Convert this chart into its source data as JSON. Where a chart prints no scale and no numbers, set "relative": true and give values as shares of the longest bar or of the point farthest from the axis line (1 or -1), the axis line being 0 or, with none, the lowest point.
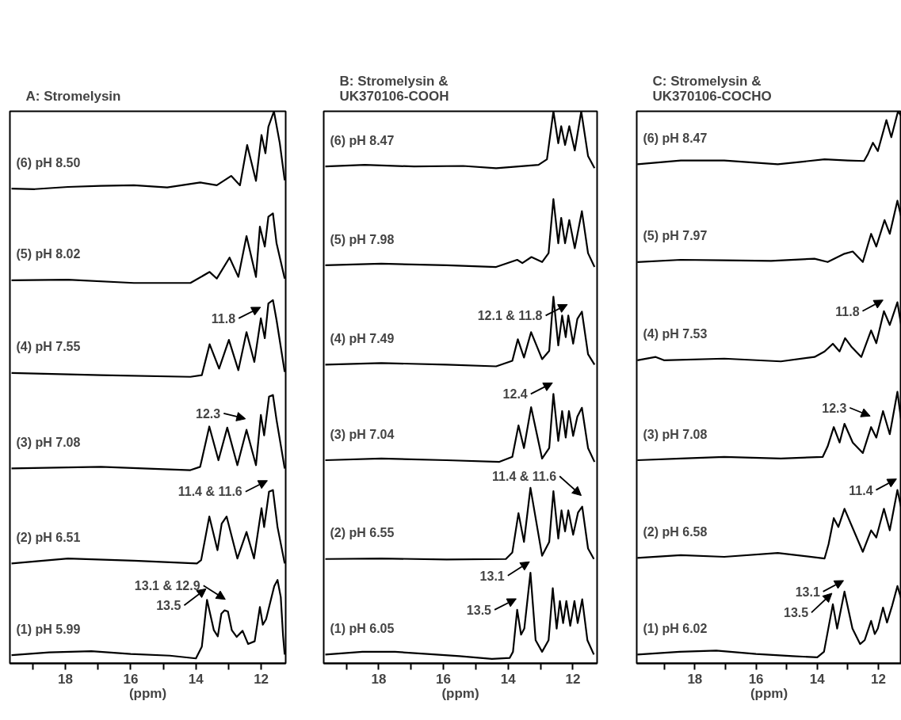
{
  "chart_data": [
    {
      "type": "line",
      "title": "A: Stromelysin",
      "xlabel": "(ppm)",
      "xlim": [
        19.7,
        11.25
      ],
      "xticks": [
        {
          "value": 19,
          "label": null
        },
        18,
        {
          "value": 17,
          "label": null
        },
        16,
        {
          "value": 15,
          "label": null
        },
        14,
        {
          "value": 13,
          "label": null
        },
        12
      ],
      "relative": true,
      "grid": false,
      "legend": false,
      "series": [
        {
          "name": "(6) pH 8.50",
          "color": "#000000",
          "x": [
            19.65,
            18.94,
            17.92,
            16.91,
            15.9,
            14.88,
            13.87,
            13.36,
            12.92,
            12.65,
            12.43,
            12.16,
            11.99,
            11.87,
            11.78,
            11.61,
            11.43,
            11.28
          ],
          "values": [
            0.86,
            0.859,
            0.863,
            0.865,
            0.866,
            0.862,
            0.871,
            0.866,
            0.883,
            0.866,
            0.939,
            0.874,
            0.957,
            0.924,
            0.972,
            1,
            0.942,
            0.875
          ]
        },
        {
          "name": "(5) pH 8.02",
          "color": "#000000",
          "x": [
            19.65,
            17.92,
            15.9,
            14.17,
            13.58,
            13.36,
            12.97,
            12.7,
            12.45,
            12.16,
            12.04,
            11.89,
            11.78,
            11.64,
            11.53,
            11.28
          ],
          "values": [
            0.694,
            0.695,
            0.689,
            0.689,
            0.709,
            0.697,
            0.735,
            0.7,
            0.774,
            0.7,
            0.791,
            0.755,
            0.809,
            0.815,
            0.761,
            0.697
          ]
        },
        {
          "name": "(4) pH 7.55",
          "color": "#000000",
          "x": [
            19.65,
            16.91,
            14.17,
            13.82,
            13.58,
            13.29,
            12.99,
            12.7,
            12.45,
            12.21,
            12.01,
            11.89,
            11.78,
            11.64,
            11.53,
            11.28
          ],
          "values": [
            0.526,
            0.522,
            0.519,
            0.522,
            0.578,
            0.534,
            0.586,
            0.531,
            0.6,
            0.546,
            0.625,
            0.589,
            0.652,
            0.658,
            0.622,
            0.528
          ]
        },
        {
          "name": "(3) pH 7.08",
          "color": "#000000",
          "x": [
            19.65,
            16.91,
            14.17,
            13.87,
            13.59,
            13.31,
            13.04,
            12.73,
            12.45,
            12.16,
            12.01,
            11.91,
            11.76,
            11.64,
            11.53,
            11.28
          ],
          "values": [
            0.353,
            0.356,
            0.35,
            0.356,
            0.429,
            0.368,
            0.427,
            0.359,
            0.423,
            0.359,
            0.45,
            0.413,
            0.483,
            0.486,
            0.441,
            0.353
          ]
        },
        {
          "name": "(2) pH 6.51",
          "color": "#000000",
          "x": [
            19.65,
            17.92,
            15.9,
            13.97,
            13.84,
            13.59,
            13.34,
            13.21,
            13.06,
            12.73,
            12.45,
            12.22,
            11.99,
            11.91,
            11.76,
            11.64,
            11.5,
            11.28
          ],
          "values": [
            0.181,
            0.19,
            0.186,
            0.181,
            0.187,
            0.266,
            0.205,
            0.253,
            0.266,
            0.19,
            0.238,
            0.19,
            0.281,
            0.247,
            0.311,
            0.314,
            0.247,
            0.181
          ]
        },
        {
          "name": "(1) pH 5.99",
          "color": "#000000",
          "x": [
            19.65,
            18.5,
            17.2,
            16.0,
            14.8,
            14.0,
            13.82,
            13.66,
            13.45,
            13.33,
            13.22,
            13.12,
            13.02,
            12.9,
            12.75,
            12.57,
            12.4,
            12.2,
            12.04,
            11.95,
            11.85,
            11.6,
            11.5,
            11.4,
            11.33,
            11.28
          ],
          "values": [
            0.015,
            0.02,
            0.022,
            0.017,
            0.014,
            0.009,
            0.03,
            0.115,
            0.06,
            0.049,
            0.09,
            0.096,
            0.094,
            0.06,
            0.048,
            0.059,
            0.035,
            0.04,
            0.102,
            0.07,
            0.08,
            0.14,
            0.151,
            0.12,
            0.05,
            0.016
          ]
        }
      ],
      "annotations": [
        {
          "text": "11.8",
          "x": 11.99,
          "y": 0.625
        },
        {
          "text": "12.3",
          "x": 12.45,
          "y": 0.423
        },
        {
          "text": "11.4 & 11.6",
          "x": 11.78,
          "y": 0.311
        },
        {
          "text": "13.1 & 12.9",
          "x": 13.07,
          "y": 0.096
        },
        {
          "text": "13.5",
          "x": 13.66,
          "y": 0.115
        }
      ]
    },
    {
      "type": "line",
      "title": "B: Stromelysin &\nUK370106-COOH",
      "xlabel": "(ppm)",
      "xlim": [
        19.7,
        11.25
      ],
      "xticks": [
        {
          "value": 19,
          "label": null
        },
        18,
        {
          "value": 17,
          "label": null
        },
        16,
        {
          "value": 15,
          "label": null
        },
        14,
        {
          "value": 13,
          "label": null
        },
        12
      ],
      "relative": true,
      "grid": false,
      "legend": false,
      "series": [
        {
          "name": "(6) pH 8.47",
          "color": "#000000",
          "x": [
            19.65,
            18.43,
            16.91,
            15.39,
            14.37,
            13.06,
            12.8,
            12.6,
            12.45,
            12.36,
            12.24,
            12.11,
            11.94,
            11.74,
            11.53,
            11.33
          ],
          "values": [
            0.9,
            0.903,
            0.9,
            0.901,
            0.897,
            0.903,
            0.913,
            1,
            0.942,
            0.973,
            0.939,
            0.973,
            0.929,
            1,
            0.919,
            0.897
          ]
        },
        {
          "name": "(5) pH 7.98",
          "color": "#000000",
          "x": [
            19.65,
            17.92,
            15.9,
            14.37,
            13.72,
            13.56,
            13.28,
            12.95,
            12.75,
            12.6,
            12.45,
            12.36,
            12.24,
            12.11,
            11.94,
            11.72,
            11.53,
            11.33
          ],
          "values": [
            0.721,
            0.724,
            0.721,
            0.718,
            0.731,
            0.725,
            0.736,
            0.727,
            0.743,
            0.841,
            0.761,
            0.807,
            0.761,
            0.803,
            0.752,
            0.819,
            0.743,
            0.718
          ]
        },
        {
          "name": "(4) pH 7.49",
          "color": "#000000",
          "x": [
            19.65,
            17.92,
            15.9,
            14.37,
            13.87,
            13.7,
            13.51,
            13.29,
            12.95,
            12.73,
            12.6,
            12.45,
            12.33,
            12.22,
            12.14,
            11.99,
            11.86,
            11.72,
            11.53,
            11.33
          ],
          "values": [
            0.541,
            0.544,
            0.541,
            0.538,
            0.548,
            0.587,
            0.554,
            0.6,
            0.551,
            0.566,
            0.664,
            0.576,
            0.63,
            0.591,
            0.63,
            0.579,
            0.624,
            0.637,
            0.56,
            0.541
          ]
        },
        {
          "name": "(3) pH 7.04",
          "color": "#000000",
          "x": [
            19.65,
            17.92,
            15.9,
            14.27,
            13.87,
            13.68,
            13.51,
            13.29,
            12.95,
            12.73,
            12.6,
            12.45,
            12.33,
            12.22,
            12.12,
            11.99,
            11.86,
            11.72,
            11.53,
            11.33
          ],
          "values": [
            0.368,
            0.371,
            0.368,
            0.365,
            0.374,
            0.431,
            0.39,
            0.464,
            0.371,
            0.39,
            0.488,
            0.403,
            0.457,
            0.409,
            0.457,
            0.412,
            0.447,
            0.463,
            0.39,
            0.365
          ]
        },
        {
          "name": "(2) pH 6.55",
          "color": "#000000",
          "x": [
            19.65,
            17.92,
            15.9,
            14.07,
            13.87,
            13.68,
            13.51,
            13.31,
            12.95,
            12.73,
            12.6,
            12.45,
            12.35,
            12.24,
            12.14,
            11.99,
            11.84,
            11.71,
            11.53,
            11.35
          ],
          "values": [
            0.189,
            0.19,
            0.188,
            0.189,
            0.201,
            0.272,
            0.22,
            0.318,
            0.195,
            0.22,
            0.312,
            0.226,
            0.277,
            0.239,
            0.277,
            0.233,
            0.273,
            0.284,
            0.208,
            0.189
          ]
        },
        {
          "name": "(1) pH 6.05",
          "color": "#000000",
          "x": [
            19.65,
            18.5,
            17.5,
            16.5,
            15.5,
            14.5,
            13.95,
            13.85,
            13.72,
            13.6,
            13.5,
            13.31,
            13.15,
            12.95,
            12.75,
            12.62,
            12.5,
            12.4,
            12.3,
            12.2,
            12.08,
            11.95,
            11.85,
            11.71,
            11.55,
            11.35
          ],
          "values": [
            0.016,
            0.021,
            0.021,
            0.017,
            0.013,
            0.008,
            0.01,
            0.021,
            0.097,
            0.052,
            0.063,
            0.164,
            0.042,
            0.021,
            0.042,
            0.136,
            0.063,
            0.113,
            0.073,
            0.113,
            0.068,
            0.113,
            0.073,
            0.116,
            0.042,
            0.016
          ]
        }
      ],
      "annotations": [
        {
          "text": "12.1 & 11.8",
          "x": 12.14,
          "y": 0.63
        },
        {
          "text": "12.4",
          "x": 12.6,
          "y": 0.488
        },
        {
          "text": "11.4 & 11.6",
          "x": 11.71,
          "y": 0.284
        },
        {
          "text": "13.1",
          "x": 13.31,
          "y": 0.164
        },
        {
          "text": "13.5",
          "x": 13.72,
          "y": 0.097
        }
      ]
    },
    {
      "type": "line",
      "title": "C: Stromelysin &\nUK370106-COCHO",
      "xlabel": "(ppm)",
      "xlim": [
        19.9,
        11.25
      ],
      "xticks": [
        {
          "value": 19,
          "label": null
        },
        18,
        {
          "value": 17,
          "label": null
        },
        16,
        {
          "value": 15,
          "label": null
        },
        14,
        {
          "value": 13,
          "label": null
        },
        12
      ],
      "relative": true,
      "grid": false,
      "legend": false,
      "series": [
        {
          "name": "(6) pH 8.47",
          "color": "#000000",
          "x": [
            19.88,
            18.46,
            17.04,
            15.29,
            13.76,
            13.0,
            12.47,
            12.34,
            12.18,
            12.02,
            11.74,
            11.58,
            11.36,
            11.25
          ],
          "values": [
            0.904,
            0.911,
            0.911,
            0.904,
            0.913,
            0.911,
            0.91,
            0.923,
            0.943,
            0.928,
            0.984,
            0.953,
            1,
            0.991
          ]
        },
        {
          "name": "(5) pH 7.97",
          "color": "#000000",
          "x": [
            19.88,
            18.46,
            17.04,
            15.51,
            14.09,
            13.66,
            13.11,
            12.84,
            12.51,
            12.24,
            12.07,
            11.8,
            11.63,
            11.38,
            11.25
          ],
          "values": [
            0.727,
            0.731,
            0.73,
            0.729,
            0.733,
            0.727,
            0.742,
            0.746,
            0.727,
            0.778,
            0.755,
            0.803,
            0.778,
            0.838,
            0.807
          ]
        },
        {
          "name": "(4) pH 7.53",
          "color": "#000000",
          "x": [
            19.88,
            19.28,
            19.01,
            17.04,
            15.19,
            14.09,
            13.76,
            13.49,
            13.27,
            13.09,
            12.89,
            12.56,
            12.24,
            12.07,
            11.82,
            11.63,
            11.38,
            11.25
          ],
          "values": [
            0.549,
            0.555,
            0.549,
            0.552,
            0.547,
            0.555,
            0.565,
            0.579,
            0.565,
            0.589,
            0.574,
            0.555,
            0.603,
            0.58,
            0.638,
            0.613,
            0.654,
            0.61
          ]
        },
        {
          "name": "(3) pH 7.08",
          "color": "#000000",
          "x": [
            19.88,
            18.46,
            17.04,
            15.19,
            13.82,
            13.66,
            13.46,
            13.27,
            13.11,
            12.84,
            12.51,
            12.24,
            12.07,
            11.85,
            11.63,
            11.38,
            11.25
          ],
          "values": [
            0.368,
            0.371,
            0.374,
            0.371,
            0.374,
            0.393,
            0.428,
            0.4,
            0.434,
            0.4,
            0.381,
            0.428,
            0.409,
            0.457,
            0.415,
            0.492,
            0.437
          ]
        },
        {
          "name": "(2) pH 6.58",
          "color": "#000000",
          "x": [
            19.88,
            18.46,
            17.04,
            15.29,
            13.76,
            13.63,
            13.46,
            13.31,
            13.11,
            12.51,
            12.24,
            12.07,
            11.82,
            11.63,
            11.38,
            11.25
          ],
          "values": [
            0.191,
            0.196,
            0.193,
            0.2,
            0.19,
            0.216,
            0.263,
            0.247,
            0.28,
            0.202,
            0.241,
            0.228,
            0.28,
            0.241,
            0.314,
            0.28
          ]
        },
        {
          "name": "(1) pH 6.02",
          "color": "#000000",
          "x": [
            19.88,
            18.5,
            17.3,
            16.0,
            14.8,
            14.0,
            13.78,
            13.49,
            13.35,
            13.11,
            12.85,
            12.6,
            12.45,
            12.24,
            12.12,
            12.02,
            11.85,
            11.72,
            11.55,
            11.38,
            11.25
          ],
          "values": [
            0.016,
            0.021,
            0.023,
            0.017,
            0.013,
            0.011,
            0.021,
            0.107,
            0.063,
            0.13,
            0.063,
            0.035,
            0.042,
            0.077,
            0.053,
            0.063,
            0.101,
            0.074,
            0.105,
            0.14,
            0.116
          ]
        }
      ],
      "annotations": [
        {
          "text": "11.8",
          "x": 11.82,
          "y": 0.638
        },
        {
          "text": "12.3",
          "x": 12.24,
          "y": 0.428
        },
        {
          "text": "11.4",
          "x": 11.38,
          "y": 0.314
        },
        {
          "text": "13.1",
          "x": 13.11,
          "y": 0.13
        },
        {
          "text": "13.5",
          "x": 13.49,
          "y": 0.107
        }
      ]
    }
  ]
}
